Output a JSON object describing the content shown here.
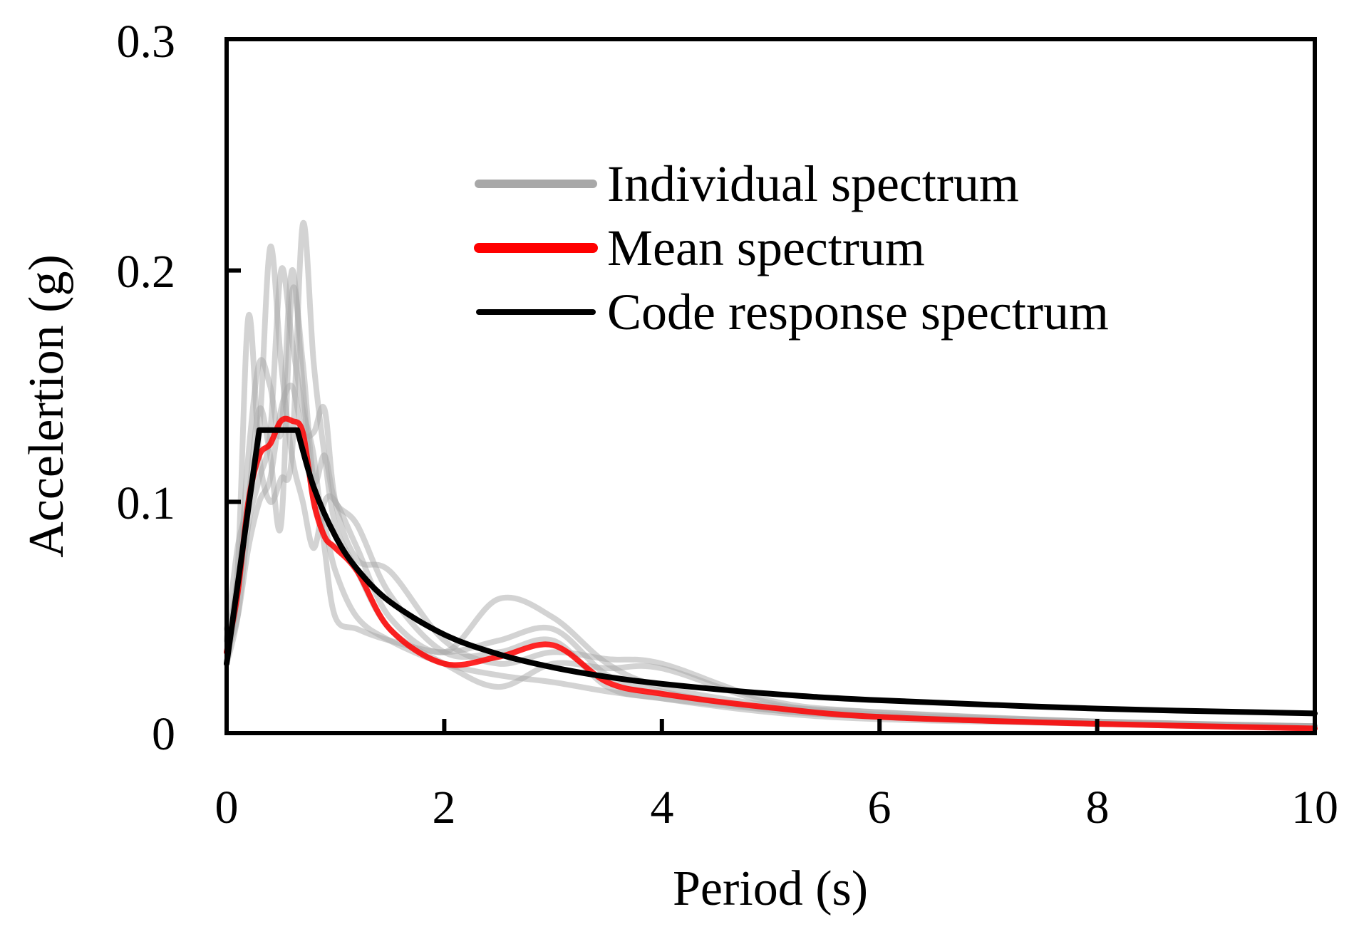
{
  "colors": {
    "individual": "#a8a8a8",
    "mean": "#ff0000",
    "code": "#000000",
    "frame": "#000000",
    "background": "#ffffff"
  },
  "chart_data": {
    "type": "line",
    "title": "",
    "xlabel": "Period (s)",
    "ylabel": "Accelertion (g)",
    "xlim": [
      0,
      10
    ],
    "ylim": [
      0,
      0.3
    ],
    "xticks": [
      0,
      2,
      4,
      6,
      8,
      10
    ],
    "yticks": [
      0,
      0.1,
      0.2,
      0.3
    ],
    "xtick_labels": [
      "0",
      "2",
      "4",
      "6",
      "8",
      "10"
    ],
    "ytick_labels": [
      "0",
      "0.1",
      "0.2",
      "0.3"
    ],
    "grid": false,
    "legend_position": "top-right",
    "legend": [
      "Individual spectrum",
      "Mean spectrum",
      "Code response spectrum"
    ],
    "series": [
      {
        "name": "Individual spectrum 1",
        "role": "individual",
        "x": [
          0,
          0.1,
          0.2,
          0.3,
          0.4,
          0.5,
          0.6,
          0.7,
          0.8,
          0.9,
          1.0,
          1.2,
          1.5,
          2.0,
          2.5,
          3.0,
          3.5,
          4.0,
          5.0,
          6.0,
          8.0,
          10.0
        ],
        "y": [
          0.035,
          0.06,
          0.12,
          0.16,
          0.15,
          0.13,
          0.2,
          0.15,
          0.1,
          0.09,
          0.07,
          0.05,
          0.04,
          0.03,
          0.025,
          0.022,
          0.018,
          0.015,
          0.01,
          0.007,
          0.004,
          0.003
        ]
      },
      {
        "name": "Individual spectrum 2",
        "role": "individual",
        "x": [
          0,
          0.1,
          0.2,
          0.3,
          0.4,
          0.5,
          0.6,
          0.7,
          0.8,
          0.9,
          1.0,
          1.2,
          1.5,
          2.0,
          2.5,
          3.0,
          3.5,
          4.0,
          5.0,
          6.0,
          8.0,
          10.0
        ],
        "y": [
          0.04,
          0.08,
          0.1,
          0.13,
          0.21,
          0.16,
          0.12,
          0.1,
          0.08,
          0.1,
          0.1,
          0.08,
          0.05,
          0.035,
          0.058,
          0.05,
          0.03,
          0.02,
          0.012,
          0.009,
          0.005,
          0.003
        ]
      },
      {
        "name": "Individual spectrum 3",
        "role": "individual",
        "x": [
          0,
          0.1,
          0.2,
          0.3,
          0.4,
          0.5,
          0.6,
          0.7,
          0.8,
          0.9,
          1.0,
          1.2,
          1.5,
          2.0,
          2.5,
          3.0,
          3.5,
          4.0,
          5.0,
          6.0,
          8.0,
          10.0
        ],
        "y": [
          0.03,
          0.05,
          0.09,
          0.11,
          0.13,
          0.2,
          0.17,
          0.14,
          0.12,
          0.08,
          0.05,
          0.045,
          0.04,
          0.035,
          0.04,
          0.045,
          0.025,
          0.018,
          0.01,
          0.007,
          0.004,
          0.002
        ]
      },
      {
        "name": "Individual spectrum 4",
        "role": "individual",
        "x": [
          0,
          0.1,
          0.2,
          0.3,
          0.4,
          0.5,
          0.6,
          0.7,
          0.8,
          0.9,
          1.0,
          1.2,
          1.5,
          2.0,
          2.5,
          3.0,
          3.5,
          4.0,
          5.0,
          6.0,
          8.0,
          10.0
        ],
        "y": [
          0.045,
          0.07,
          0.18,
          0.12,
          0.1,
          0.11,
          0.12,
          0.22,
          0.16,
          0.12,
          0.09,
          0.07,
          0.045,
          0.03,
          0.02,
          0.03,
          0.028,
          0.028,
          0.013,
          0.008,
          0.005,
          0.003
        ]
      },
      {
        "name": "Individual spectrum 5",
        "role": "individual",
        "x": [
          0,
          0.1,
          0.2,
          0.3,
          0.4,
          0.5,
          0.6,
          0.7,
          0.8,
          0.9,
          1.0,
          1.2,
          1.5,
          2.0,
          2.5,
          3.0,
          3.5,
          4.0,
          5.0,
          6.0,
          8.0,
          10.0
        ],
        "y": [
          0.03,
          0.06,
          0.1,
          0.14,
          0.12,
          0.09,
          0.19,
          0.16,
          0.11,
          0.12,
          0.1,
          0.09,
          0.06,
          0.035,
          0.035,
          0.04,
          0.02,
          0.015,
          0.009,
          0.006,
          0.004,
          0.002
        ]
      },
      {
        "name": "Individual spectrum 6",
        "role": "individual",
        "x": [
          0,
          0.1,
          0.2,
          0.3,
          0.4,
          0.5,
          0.6,
          0.7,
          0.8,
          0.9,
          1.0,
          1.2,
          1.5,
          2.0,
          2.5,
          3.0,
          3.5,
          4.0,
          5.0,
          6.0,
          8.0,
          10.0
        ],
        "y": [
          0.035,
          0.05,
          0.08,
          0.1,
          0.11,
          0.14,
          0.15,
          0.13,
          0.13,
          0.14,
          0.1,
          0.075,
          0.07,
          0.04,
          0.03,
          0.035,
          0.032,
          0.03,
          0.014,
          0.009,
          0.005,
          0.003
        ]
      },
      {
        "name": "Mean spectrum",
        "role": "mean",
        "x": [
          0,
          0.1,
          0.2,
          0.3,
          0.4,
          0.5,
          0.6,
          0.7,
          0.8,
          0.9,
          1.0,
          1.2,
          1.5,
          2.0,
          2.5,
          3.0,
          3.5,
          4.0,
          5.0,
          6.0,
          8.0,
          10.0
        ],
        "y": [
          0.035,
          0.06,
          0.1,
          0.12,
          0.125,
          0.135,
          0.135,
          0.13,
          0.1,
          0.085,
          0.08,
          0.07,
          0.045,
          0.03,
          0.033,
          0.038,
          0.022,
          0.017,
          0.011,
          0.007,
          0.004,
          0.002
        ]
      },
      {
        "name": "Code response spectrum",
        "role": "code",
        "x": [
          0,
          0.3,
          0.65,
          0.8,
          1.0,
          1.2,
          1.5,
          2.0,
          2.5,
          3.0,
          3.5,
          4.0,
          5.0,
          6.0,
          8.0,
          10.0
        ],
        "y": [
          0.03,
          0.131,
          0.131,
          0.1064,
          0.0851,
          0.0709,
          0.0568,
          0.0426,
          0.0341,
          0.0284,
          0.0243,
          0.0213,
          0.017,
          0.0142,
          0.0106,
          0.0085
        ]
      }
    ]
  }
}
